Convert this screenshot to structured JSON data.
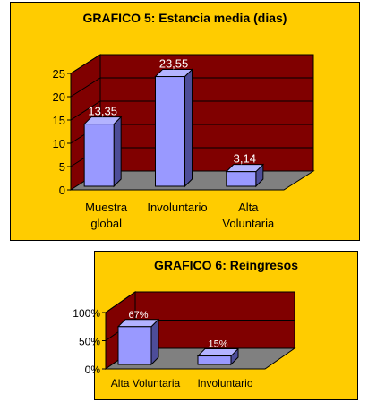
{
  "colors": {
    "panel_bg": "#ffcc00",
    "wall": "#800000",
    "floor": "#808080",
    "bar_front": "#9999ff",
    "bar_side": "#4d4d99",
    "bar_top": "#b3b3ff",
    "label_text": "#ffffff"
  },
  "chart_data": [
    {
      "type": "bar",
      "title": "GRAFICO 5: Estancia media (dias)",
      "categories": [
        [
          "Muestra",
          "global"
        ],
        [
          "Involuntario"
        ],
        [
          "Alta",
          "Voluntaria"
        ]
      ],
      "values": [
        13.35,
        23.55,
        3.14
      ],
      "value_labels": [
        "13,35",
        "23,55",
        "3,14"
      ],
      "yticks": [
        "0",
        "5",
        "10",
        "15",
        "20",
        "25"
      ],
      "ylim": [
        0,
        25
      ],
      "style": "3d-column"
    },
    {
      "type": "bar",
      "title": "GRAFICO 6: Reingresos",
      "categories": [
        [
          "Alta Voluntaria"
        ],
        [
          "Involuntario"
        ]
      ],
      "values": [
        67,
        15
      ],
      "value_labels": [
        "67%",
        "15%"
      ],
      "yticks": [
        "0%",
        "50%",
        "100%"
      ],
      "ylim": [
        0,
        100
      ],
      "style": "3d-column"
    }
  ]
}
